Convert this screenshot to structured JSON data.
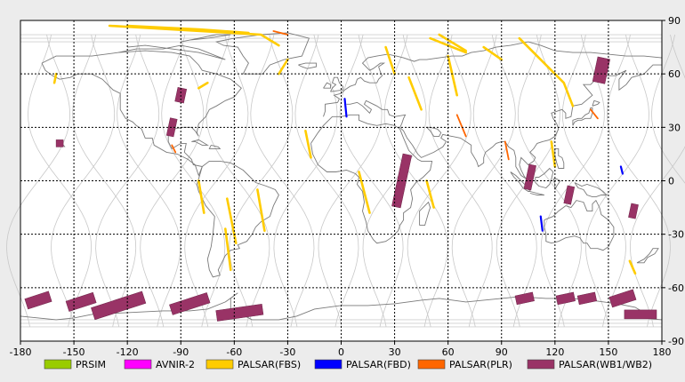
{
  "map": {
    "lon_range": [
      -180,
      180
    ],
    "lat_range": [
      -90,
      90
    ],
    "lon_ticks": [
      "-180",
      "-150",
      "-120",
      "-90",
      "-60",
      "-30",
      "0",
      "30",
      "60",
      "90",
      "120",
      "150",
      "180"
    ],
    "lat_ticks": [
      "90",
      "60",
      "30",
      "0",
      "-30",
      "-60",
      "-90"
    ],
    "grid": true
  },
  "legend": [
    {
      "label": "PRSIM",
      "color": "#99cc00"
    },
    {
      "label": "AVNIR-2",
      "color": "#ff00ff"
    },
    {
      "label": "PALSAR(FBS)",
      "color": "#ffcc00"
    },
    {
      "label": "PALSAR(FBD)",
      "color": "#0000ff"
    },
    {
      "label": "PALSAR(PLR)",
      "color": "#ff6600"
    },
    {
      "label": "PALSAR(WB1/WB2)",
      "color": "#993366"
    }
  ],
  "wb_scenes": [
    {
      "lon": -90,
      "lat": 48,
      "w": 5,
      "h": 8,
      "tilt": 12
    },
    {
      "lon": -95,
      "lat": 30,
      "w": 4,
      "h": 10,
      "tilt": 12
    },
    {
      "lon": -158,
      "lat": 21,
      "w": 4,
      "h": 4,
      "tilt": 0
    },
    {
      "lon": 34,
      "lat": 0,
      "w": 5,
      "h": 30,
      "tilt": 12
    },
    {
      "lon": 106,
      "lat": 2,
      "w": 4,
      "h": 14,
      "tilt": 12
    },
    {
      "lon": 128,
      "lat": -8,
      "w": 4,
      "h": 10,
      "tilt": 12
    },
    {
      "lon": 164,
      "lat": -17,
      "w": 4,
      "h": 8,
      "tilt": 12
    },
    {
      "lon": 146,
      "lat": 62,
      "w": 7,
      "h": 14,
      "tilt": 12
    },
    {
      "lon": -170,
      "lat": -67,
      "w": 14,
      "h": 6,
      "tilt": -18
    },
    {
      "lon": -146,
      "lat": -68,
      "w": 16,
      "h": 6,
      "tilt": -18
    },
    {
      "lon": -125,
      "lat": -70,
      "w": 30,
      "h": 7,
      "tilt": -18
    },
    {
      "lon": -85,
      "lat": -69,
      "w": 22,
      "h": 6,
      "tilt": -18
    },
    {
      "lon": -57,
      "lat": -74,
      "w": 26,
      "h": 6,
      "tilt": -8
    },
    {
      "lon": 103,
      "lat": -66,
      "w": 10,
      "h": 5,
      "tilt": -12
    },
    {
      "lon": 126,
      "lat": -66,
      "w": 10,
      "h": 5,
      "tilt": -12
    },
    {
      "lon": 138,
      "lat": -66,
      "w": 10,
      "h": 5,
      "tilt": -12
    },
    {
      "lon": 158,
      "lat": -66,
      "w": 14,
      "h": 6,
      "tilt": -18
    },
    {
      "lon": 168,
      "lat": -75,
      "w": 18,
      "h": 5,
      "tilt": 0
    }
  ],
  "fbs_swaths": [
    [
      [
        -130,
        87
      ],
      [
        -45,
        82
      ],
      [
        -35,
        76
      ]
    ],
    [
      [
        -52,
        83
      ],
      [
        -80,
        85
      ],
      [
        -120,
        87
      ]
    ],
    [
      [
        50,
        80
      ],
      [
        60,
        76
      ],
      [
        70,
        72
      ]
    ],
    [
      [
        55,
        82
      ],
      [
        70,
        73
      ]
    ],
    [
      [
        80,
        75
      ],
      [
        90,
        68
      ]
    ],
    [
      [
        100,
        80
      ],
      [
        125,
        55
      ],
      [
        130,
        42
      ]
    ],
    [
      [
        -160,
        60
      ],
      [
        -161,
        55
      ]
    ],
    [
      [
        -75,
        55
      ],
      [
        -80,
        52
      ]
    ],
    [
      [
        -20,
        28
      ],
      [
        -17,
        13
      ]
    ],
    [
      [
        -47,
        -5
      ],
      [
        -43,
        -28
      ]
    ],
    [
      [
        -64,
        -10
      ],
      [
        -59,
        -35
      ]
    ],
    [
      [
        -65,
        -27
      ],
      [
        -62,
        -50
      ]
    ],
    [
      [
        -80,
        0
      ],
      [
        -77,
        -18
      ]
    ],
    [
      [
        38,
        58
      ],
      [
        45,
        40
      ]
    ],
    [
      [
        10,
        5
      ],
      [
        16,
        -18
      ]
    ],
    [
      [
        48,
        0
      ],
      [
        52,
        -15
      ]
    ],
    [
      [
        -30,
        68
      ],
      [
        -35,
        60
      ]
    ],
    [
      [
        25,
        75
      ],
      [
        30,
        60
      ]
    ],
    [
      [
        60,
        70
      ],
      [
        65,
        48
      ]
    ],
    [
      [
        118,
        22
      ],
      [
        120,
        8
      ]
    ],
    [
      [
        162,
        -45
      ],
      [
        165,
        -52
      ]
    ]
  ],
  "fbd_swaths": [
    [
      [
        2,
        46
      ],
      [
        3,
        36
      ]
    ],
    [
      [
        157,
        8
      ],
      [
        158,
        4
      ]
    ],
    [
      [
        112,
        -20
      ],
      [
        113,
        -28
      ]
    ]
  ],
  "plr_swaths": [
    [
      [
        65,
        37
      ],
      [
        70,
        25
      ]
    ],
    [
      [
        92,
        22
      ],
      [
        94,
        12
      ]
    ],
    [
      [
        140,
        40
      ],
      [
        144,
        35
      ]
    ],
    [
      [
        -95,
        20
      ],
      [
        -93,
        16
      ]
    ],
    [
      [
        -38,
        84
      ],
      [
        -30,
        82
      ]
    ]
  ]
}
